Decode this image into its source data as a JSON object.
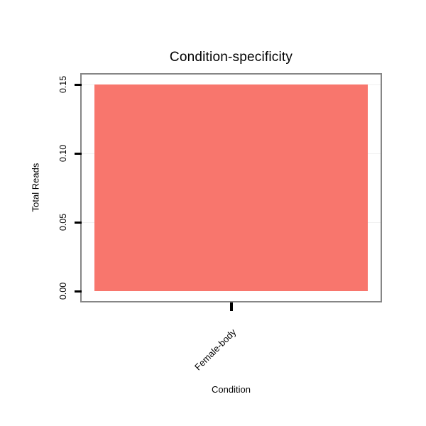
{
  "chart_data": {
    "type": "bar",
    "title": "Condition-specificity",
    "xlabel": "Condition",
    "ylabel": "Total Reads",
    "categories": [
      "Female-body"
    ],
    "values": [
      0.15
    ],
    "ylim": [
      0,
      0.15
    ],
    "yticks": [
      {
        "value": 0.0,
        "label": "0.00"
      },
      {
        "value": 0.05,
        "label": "0.05"
      },
      {
        "value": 0.1,
        "label": "0.10"
      },
      {
        "value": 0.15,
        "label": "0.15"
      }
    ],
    "grid": true,
    "legend": false,
    "colors": {
      "bar": "#F8766D",
      "panel_border": "#868686",
      "gridline": "#f0f0f0",
      "tick": "#000000",
      "text": "#000000"
    }
  }
}
